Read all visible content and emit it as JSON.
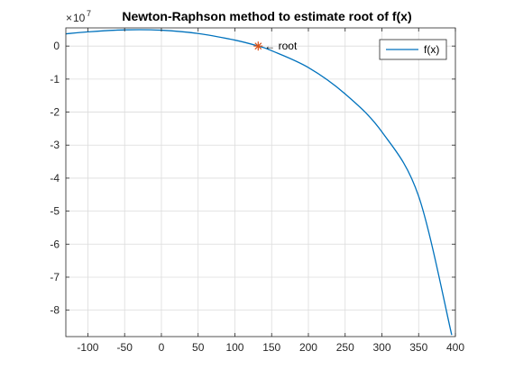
{
  "chart_data": {
    "type": "line",
    "title": "Newton-Raphson method to estimate root of f(x)",
    "xlabel": "",
    "ylabel": "",
    "y_exponent_base": "10",
    "y_exponent_power": "7",
    "xlim": [
      -130,
      400
    ],
    "ylim": [
      -8.8,
      0.55
    ],
    "xticks": [
      -100,
      -50,
      0,
      50,
      100,
      150,
      200,
      250,
      300,
      350,
      400
    ],
    "yticks": [
      0,
      -1,
      -2,
      -3,
      -4,
      -5,
      -6,
      -7,
      -8
    ],
    "grid": true,
    "legend": {
      "position": "top-right",
      "entries": [
        "f(x)"
      ]
    },
    "series": [
      {
        "name": "f(x)",
        "color": "#0072BD",
        "x": [
          -130,
          -100,
          -50,
          0,
          50,
          100,
          131.7,
          150,
          200,
          250,
          300,
          350,
          395
        ],
        "y": [
          0.37,
          0.43,
          0.49,
          0.48,
          0.38,
          0.18,
          0.0,
          -0.14,
          -0.65,
          -1.45,
          -2.6,
          -4.55,
          -8.75
        ]
      }
    ],
    "markers": [
      {
        "x": 131.7,
        "y": 0.0,
        "symbol": "star",
        "color": "#D95319",
        "label": "root"
      }
    ]
  }
}
